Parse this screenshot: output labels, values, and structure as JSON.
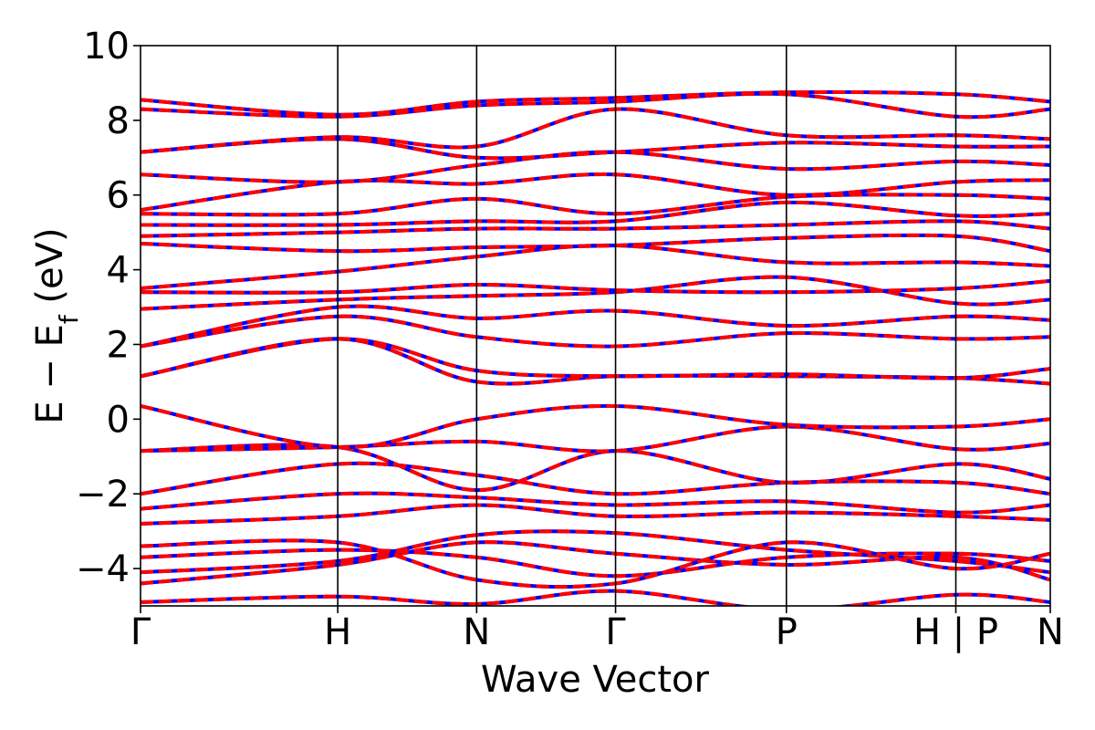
{
  "chart_data": {
    "type": "line",
    "xlabel": "Wave Vector",
    "ylabel_main": "E − E",
    "ylabel_sub": "f",
    "ylabel_unit": " (eV)",
    "ylim": [
      -5,
      10
    ],
    "yticks": [
      -4,
      -2,
      0,
      2,
      4,
      6,
      8,
      10
    ],
    "ytick_labels": [
      "−4",
      "−2",
      "0",
      "2",
      "4",
      "6",
      "8",
      "10"
    ],
    "x_range": [
      0,
      6.55
    ],
    "kpoints": [
      {
        "label": "Γ",
        "x": 0.0
      },
      {
        "label": "H",
        "x": 1.42
      },
      {
        "label": "N",
        "x": 2.42
      },
      {
        "label": "Γ",
        "x": 3.42
      },
      {
        "label": "P",
        "x": 4.65
      },
      {
        "label": "H | P",
        "x": 5.87
      },
      {
        "label": "N",
        "x": 6.55
      }
    ],
    "series_style": {
      "base_color": "#0000ff",
      "overlay_color": "#ff0000",
      "overlay": "dashed"
    },
    "series": [
      {
        "x": [
          0,
          1.42,
          2.42,
          3.42,
          4.65,
          5.87,
          6.55
        ],
        "y": [
          -4.9,
          -4.75,
          -4.95,
          -4.6,
          -5.1,
          -4.7,
          -4.9
        ]
      },
      {
        "x": [
          0,
          1.42,
          2.42,
          3.42,
          4.65,
          5.87,
          6.55
        ],
        "y": [
          -4.4,
          -3.9,
          -3.3,
          -3.6,
          -3.9,
          -3.7,
          -4.3
        ]
      },
      {
        "x": [
          0,
          1.42,
          2.42,
          3.42,
          4.65,
          5.87,
          6.55
        ],
        "y": [
          -4.1,
          -3.8,
          -3.1,
          -3.05,
          -3.5,
          -3.8,
          -4.1
        ]
      },
      {
        "x": [
          0,
          1.42,
          2.42,
          3.42,
          4.65,
          5.87,
          6.55
        ],
        "y": [
          -3.7,
          -3.5,
          -3.7,
          -4.2,
          -3.7,
          -3.6,
          -3.8
        ]
      },
      {
        "x": [
          0,
          1.42,
          2.42,
          3.42,
          4.65,
          5.87,
          6.55
        ],
        "y": [
          -3.4,
          -3.3,
          -4.3,
          -4.4,
          -3.3,
          -4.0,
          -3.6
        ]
      },
      {
        "x": [
          0,
          1.42,
          2.42,
          3.42,
          4.65,
          5.87,
          6.55
        ],
        "y": [
          -2.8,
          -2.6,
          -2.3,
          -2.6,
          -2.5,
          -2.6,
          -2.7
        ]
      },
      {
        "x": [
          0,
          1.42,
          2.42,
          3.42,
          4.65,
          5.87,
          6.55
        ],
        "y": [
          -2.4,
          -2.0,
          -2.1,
          -2.3,
          -2.2,
          -2.5,
          -2.3
        ]
      },
      {
        "x": [
          0,
          1.42,
          2.42,
          3.42,
          4.65,
          5.87,
          6.55
        ],
        "y": [
          -2.0,
          -1.2,
          -1.5,
          -2.0,
          -1.7,
          -1.7,
          -2.0
        ]
      },
      {
        "x": [
          0,
          1.42,
          2.42,
          3.42,
          4.65,
          5.87,
          6.55
        ],
        "y": [
          -0.85,
          -0.75,
          -1.9,
          -0.85,
          -1.7,
          -1.2,
          -1.6
        ]
      },
      {
        "x": [
          0,
          1.42,
          2.42,
          3.42,
          4.65,
          5.87,
          6.55
        ],
        "y": [
          -0.85,
          -0.75,
          -0.6,
          -0.85,
          -0.2,
          -0.8,
          -0.65
        ]
      },
      {
        "x": [
          0,
          1.42,
          2.42,
          3.42,
          4.65,
          5.87,
          6.55
        ],
        "y": [
          0.35,
          -0.75,
          0.0,
          0.35,
          -0.15,
          -0.2,
          0.0
        ]
      },
      {
        "x": [
          0,
          1.42,
          2.42,
          3.42,
          4.65,
          5.87,
          6.55
        ],
        "y": [
          1.15,
          2.15,
          1.0,
          1.15,
          1.15,
          1.1,
          0.95
        ]
      },
      {
        "x": [
          0,
          1.42,
          2.42,
          3.42,
          4.65,
          5.87,
          6.55
        ],
        "y": [
          1.15,
          2.15,
          1.3,
          1.15,
          1.2,
          1.1,
          1.35
        ]
      },
      {
        "x": [
          0,
          1.42,
          2.42,
          3.42,
          4.65,
          5.87,
          6.55
        ],
        "y": [
          1.95,
          2.75,
          2.2,
          1.95,
          2.3,
          2.15,
          2.2
        ]
      },
      {
        "x": [
          0,
          1.42,
          2.42,
          3.42,
          4.65,
          5.87,
          6.55
        ],
        "y": [
          1.95,
          3.0,
          2.7,
          2.9,
          2.5,
          2.75,
          2.65
        ]
      },
      {
        "x": [
          0,
          1.42,
          2.42,
          3.42,
          4.65,
          5.87,
          6.55
        ],
        "y": [
          2.95,
          3.2,
          3.3,
          3.4,
          3.8,
          3.1,
          3.2
        ]
      },
      {
        "x": [
          0,
          1.42,
          2.42,
          3.42,
          4.65,
          5.87,
          6.55
        ],
        "y": [
          3.4,
          3.4,
          3.6,
          3.45,
          3.4,
          3.5,
          3.7
        ]
      },
      {
        "x": [
          0,
          1.42,
          2.42,
          3.42,
          4.65,
          5.87,
          6.55
        ],
        "y": [
          3.5,
          3.95,
          4.35,
          4.65,
          4.2,
          4.2,
          4.1
        ]
      },
      {
        "x": [
          0,
          1.42,
          2.42,
          3.42,
          4.65,
          5.87,
          6.55
        ],
        "y": [
          4.7,
          4.5,
          4.6,
          4.65,
          4.85,
          4.9,
          4.5
        ]
      },
      {
        "x": [
          0,
          1.42,
          2.42,
          3.42,
          4.65,
          5.87,
          6.55
        ],
        "y": [
          4.9,
          5.0,
          5.1,
          5.1,
          5.2,
          5.3,
          5.1
        ]
      },
      {
        "x": [
          0,
          1.42,
          2.42,
          3.42,
          4.65,
          5.87,
          6.55
        ],
        "y": [
          5.2,
          5.2,
          5.3,
          5.3,
          5.8,
          5.45,
          5.5
        ]
      },
      {
        "x": [
          0,
          1.42,
          2.42,
          3.42,
          4.65,
          5.87,
          6.55
        ],
        "y": [
          5.5,
          5.5,
          5.9,
          5.5,
          5.95,
          6.0,
          5.9
        ]
      },
      {
        "x": [
          0,
          1.42,
          2.42,
          3.42,
          4.65,
          5.87,
          6.55
        ],
        "y": [
          5.6,
          6.35,
          6.3,
          6.55,
          6.0,
          6.35,
          6.4
        ]
      },
      {
        "x": [
          0,
          1.42,
          2.42,
          3.42,
          4.65,
          5.87,
          6.55
        ],
        "y": [
          6.55,
          6.35,
          6.8,
          7.15,
          6.7,
          6.9,
          6.8
        ]
      },
      {
        "x": [
          0,
          1.42,
          2.42,
          3.42,
          4.65,
          5.87,
          6.55
        ],
        "y": [
          7.15,
          7.5,
          7.0,
          7.15,
          7.4,
          7.3,
          7.3
        ]
      },
      {
        "x": [
          0,
          1.42,
          2.42,
          3.42,
          4.65,
          5.87,
          6.55
        ],
        "y": [
          7.15,
          7.55,
          7.3,
          8.3,
          7.6,
          7.6,
          7.5
        ]
      },
      {
        "x": [
          0,
          1.42,
          2.42,
          3.42,
          4.65,
          5.87,
          6.55
        ],
        "y": [
          8.3,
          8.1,
          8.4,
          8.5,
          8.7,
          8.1,
          8.3
        ]
      },
      {
        "x": [
          0,
          1.42,
          2.42,
          3.42,
          4.65,
          5.87,
          6.55
        ],
        "y": [
          8.55,
          8.15,
          8.5,
          8.6,
          8.75,
          8.7,
          8.5
        ]
      }
    ]
  }
}
